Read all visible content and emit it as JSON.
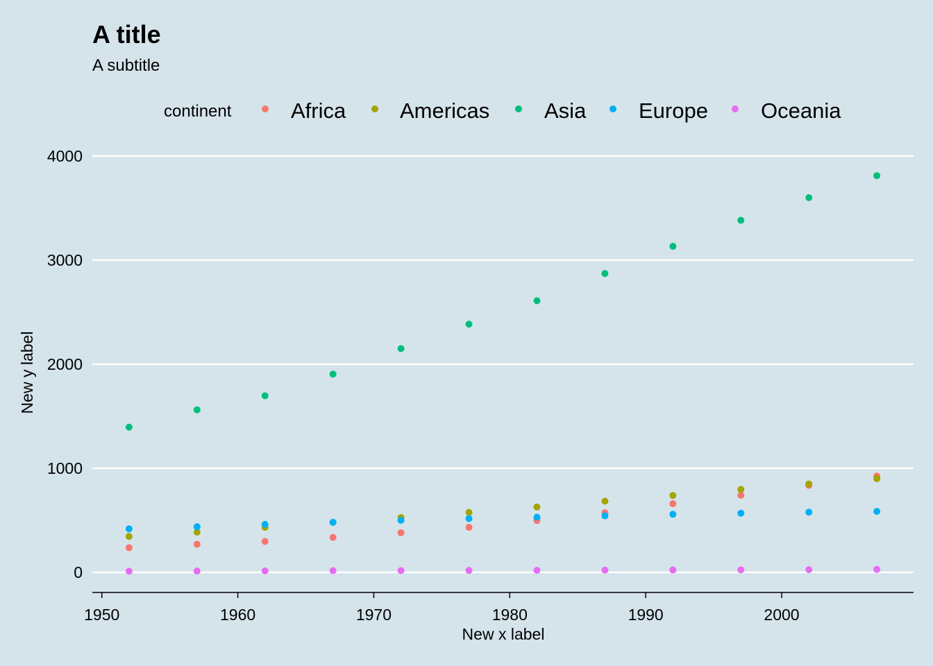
{
  "chart_data": {
    "type": "scatter",
    "title": "A title",
    "subtitle": "A subtitle",
    "xlabel": "New x label",
    "ylabel": "New y label",
    "xlim": [
      1949.3,
      2009.7
    ],
    "ylim": [
      -180,
      4200
    ],
    "x_ticks": [
      1950,
      1960,
      1970,
      1980,
      1990,
      2000
    ],
    "y_ticks": [
      0,
      1000,
      2000,
      3000,
      4000
    ],
    "grid": "horizontal major",
    "legend": {
      "title": "continent",
      "placement": "top"
    },
    "x": [
      1952,
      1957,
      1962,
      1967,
      1972,
      1977,
      1982,
      1987,
      1992,
      1997,
      2002,
      2007
    ],
    "series": [
      {
        "name": "Africa",
        "color": "#f8766d",
        "values": [
          237,
          270,
          297,
          336,
          381,
          433,
          498,
          573,
          659,
          741,
          836,
          925
        ]
      },
      {
        "name": "Americas",
        "color": "#a3a500",
        "values": [
          345,
          386,
          433,
          480,
          527,
          576,
          628,
          684,
          739,
          797,
          849,
          899
        ]
      },
      {
        "name": "Asia",
        "color": "#00bf7d",
        "values": [
          1395,
          1562,
          1697,
          1905,
          2150,
          2385,
          2610,
          2872,
          3133,
          3383,
          3601,
          3812
        ]
      },
      {
        "name": "Europe",
        "color": "#00b0f6",
        "values": [
          418,
          438,
          461,
          481,
          500,
          517,
          530,
          543,
          558,
          568,
          578,
          586
        ]
      },
      {
        "name": "Oceania",
        "color": "#e76bf3",
        "values": [
          11,
          13,
          14,
          16,
          17,
          18,
          19,
          21,
          23,
          24,
          26,
          28
        ]
      }
    ]
  }
}
